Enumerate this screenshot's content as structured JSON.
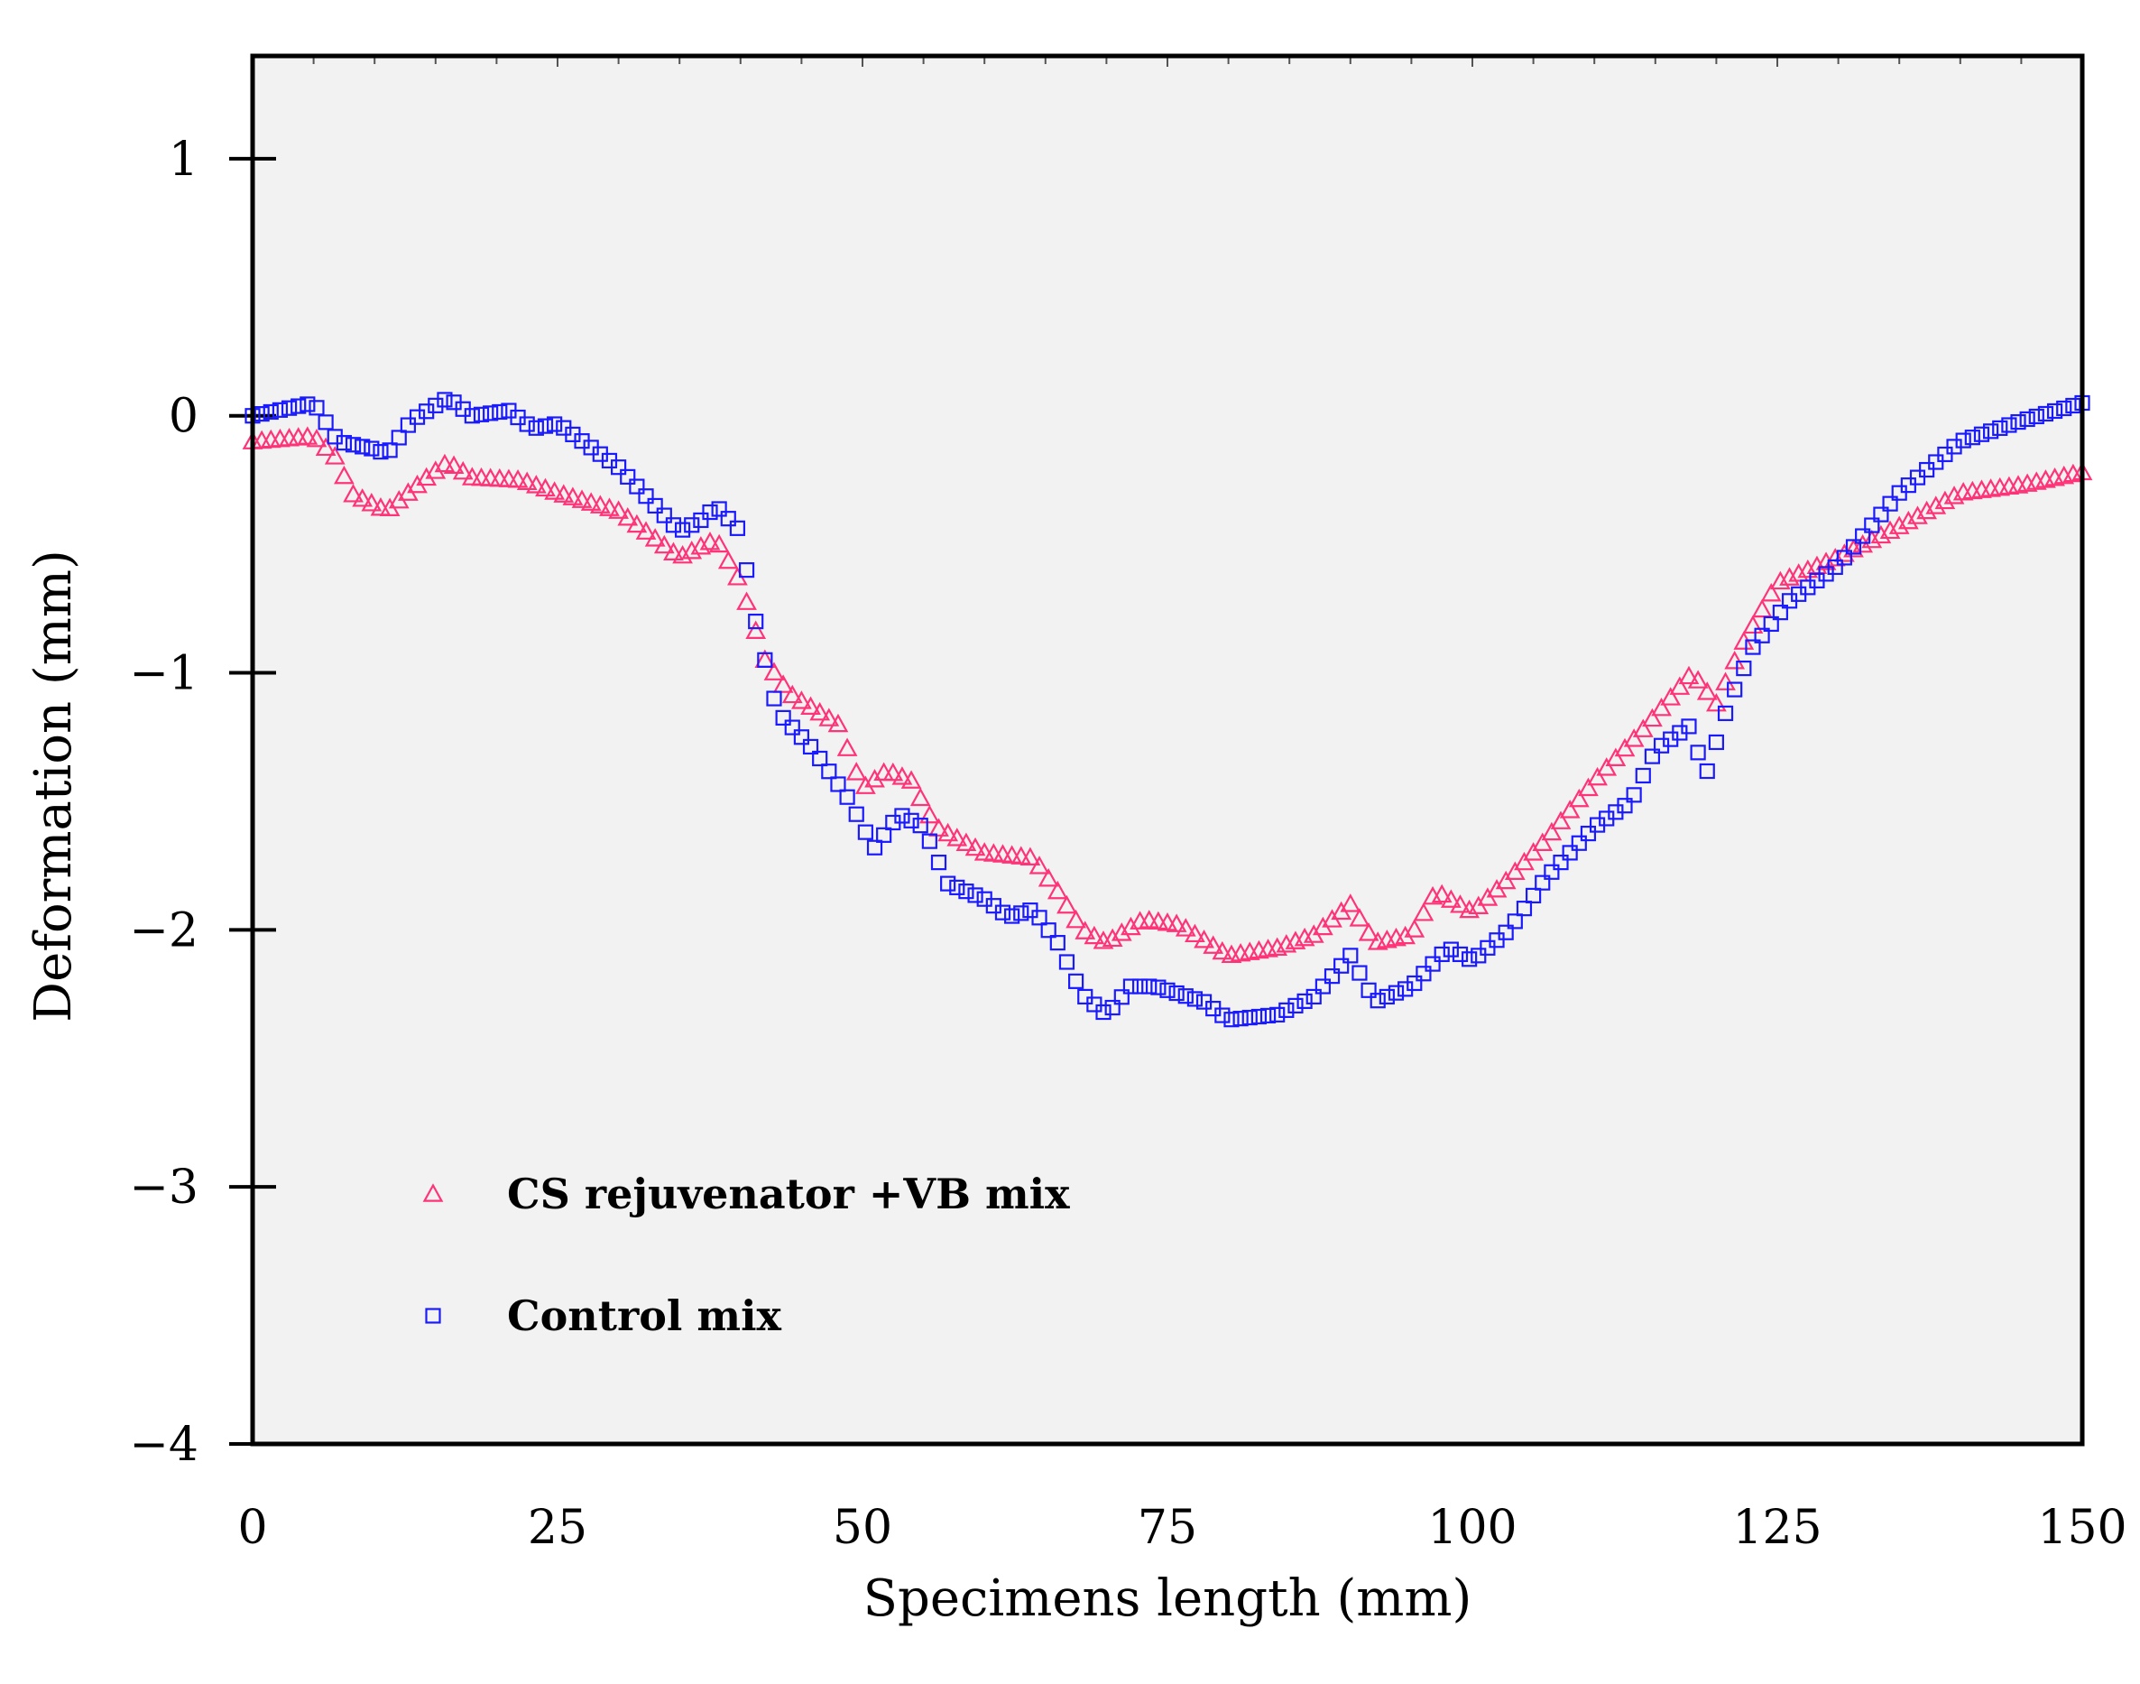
{
  "chart_data": {
    "type": "scatter",
    "xlabel": "Specimens length (mm)",
    "ylabel": "Deformation (mm)",
    "xlim": [
      0,
      150
    ],
    "ylim": [
      -4,
      1.4
    ],
    "xticks": [
      0,
      25,
      50,
      75,
      100,
      125,
      150
    ],
    "xtick_labels": [
      "0",
      "25",
      "50",
      "75",
      "100",
      "125",
      "150"
    ],
    "yticks": [
      1,
      0,
      -1,
      -2,
      -3,
      -4
    ],
    "ytick_labels": [
      "1",
      "0",
      "−1",
      "−2",
      "−3",
      "−4"
    ],
    "grid": false,
    "legend_position": "lower-left",
    "colors": {
      "cs": "#ff3377",
      "control": "#1a1aff",
      "plot_bg": "#f2f2f2"
    },
    "series": [
      {
        "name": "CS rejuvenator +VB mix",
        "marker": "triangle",
        "color": "#ff3377",
        "anchors": [
          [
            0,
            -0.1
          ],
          [
            5,
            -0.08
          ],
          [
            7,
            -0.17
          ],
          [
            8,
            -0.3
          ],
          [
            11,
            -0.37
          ],
          [
            14,
            -0.25
          ],
          [
            16,
            -0.18
          ],
          [
            18,
            -0.24
          ],
          [
            22,
            -0.25
          ],
          [
            25,
            -0.3
          ],
          [
            30,
            -0.37
          ],
          [
            35,
            -0.55
          ],
          [
            38,
            -0.48
          ],
          [
            40,
            -0.65
          ],
          [
            41,
            -0.8
          ],
          [
            42,
            -0.95
          ],
          [
            44,
            -1.08
          ],
          [
            48,
            -1.2
          ],
          [
            50,
            -1.45
          ],
          [
            52,
            -1.38
          ],
          [
            54,
            -1.42
          ],
          [
            56,
            -1.6
          ],
          [
            60,
            -1.7
          ],
          [
            64,
            -1.72
          ],
          [
            66,
            -1.85
          ],
          [
            68,
            -2.0
          ],
          [
            70,
            -2.05
          ],
          [
            73,
            -1.96
          ],
          [
            76,
            -1.98
          ],
          [
            80,
            -2.1
          ],
          [
            84,
            -2.07
          ],
          [
            87,
            -2.02
          ],
          [
            90,
            -1.9
          ],
          [
            92,
            -2.05
          ],
          [
            95,
            -2.02
          ],
          [
            97,
            -1.85
          ],
          [
            100,
            -1.93
          ],
          [
            103,
            -1.8
          ],
          [
            106,
            -1.65
          ],
          [
            110,
            -1.42
          ],
          [
            114,
            -1.22
          ],
          [
            118,
            -1.0
          ],
          [
            120,
            -1.12
          ],
          [
            122,
            -0.9
          ],
          [
            125,
            -0.65
          ],
          [
            130,
            -0.55
          ],
          [
            135,
            -0.43
          ],
          [
            140,
            -0.3
          ],
          [
            145,
            -0.27
          ],
          [
            150,
            -0.22
          ]
        ]
      },
      {
        "name": "Control mix",
        "marker": "square",
        "color": "#1a1aff",
        "anchors": [
          [
            0,
            0.0
          ],
          [
            5,
            0.05
          ],
          [
            7,
            -0.1
          ],
          [
            10,
            -0.13
          ],
          [
            11,
            -0.15
          ],
          [
            13,
            -0.02
          ],
          [
            16,
            0.07
          ],
          [
            18,
            0.0
          ],
          [
            21,
            0.02
          ],
          [
            23,
            -0.05
          ],
          [
            25,
            -0.03
          ],
          [
            30,
            -0.2
          ],
          [
            35,
            -0.45
          ],
          [
            37,
            -0.4
          ],
          [
            38,
            -0.35
          ],
          [
            40,
            -0.45
          ],
          [
            41,
            -0.75
          ],
          [
            42,
            -0.95
          ],
          [
            43,
            -1.15
          ],
          [
            46,
            -1.3
          ],
          [
            49,
            -1.5
          ],
          [
            50,
            -1.6
          ],
          [
            51,
            -1.68
          ],
          [
            53,
            -1.55
          ],
          [
            55,
            -1.6
          ],
          [
            57,
            -1.82
          ],
          [
            60,
            -1.88
          ],
          [
            62,
            -1.95
          ],
          [
            64,
            -1.92
          ],
          [
            66,
            -2.05
          ],
          [
            68,
            -2.25
          ],
          [
            70,
            -2.33
          ],
          [
            72,
            -2.22
          ],
          [
            74,
            -2.22
          ],
          [
            78,
            -2.28
          ],
          [
            80,
            -2.35
          ],
          [
            84,
            -2.33
          ],
          [
            87,
            -2.26
          ],
          [
            90,
            -2.1
          ],
          [
            92,
            -2.28
          ],
          [
            95,
            -2.22
          ],
          [
            98,
            -2.07
          ],
          [
            100,
            -2.12
          ],
          [
            103,
            -2.0
          ],
          [
            106,
            -1.8
          ],
          [
            110,
            -1.6
          ],
          [
            113,
            -1.5
          ],
          [
            115,
            -1.3
          ],
          [
            118,
            -1.2
          ],
          [
            119,
            -1.42
          ],
          [
            120,
            -1.27
          ],
          [
            121,
            -1.12
          ],
          [
            123,
            -0.9
          ],
          [
            126,
            -0.72
          ],
          [
            130,
            -0.58
          ],
          [
            135,
            -0.3
          ],
          [
            140,
            -0.1
          ],
          [
            145,
            -0.02
          ],
          [
            150,
            0.05
          ]
        ]
      }
    ]
  }
}
